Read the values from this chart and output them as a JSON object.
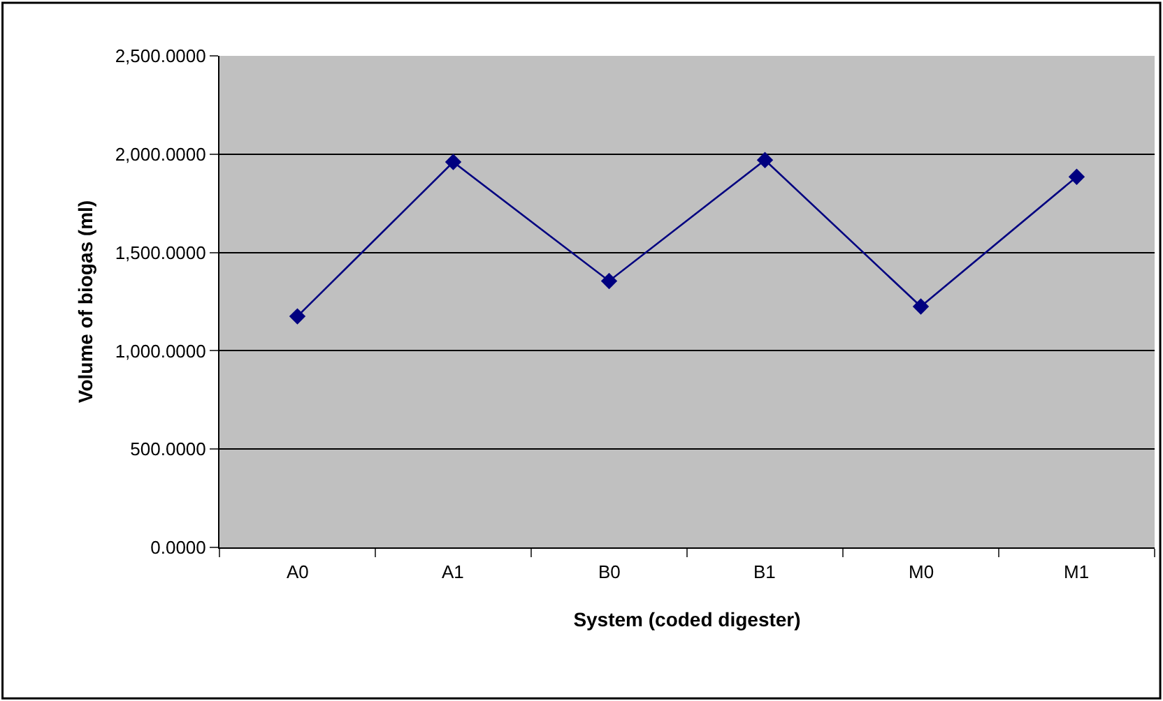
{
  "chart_data": {
    "type": "line",
    "xlabel": "System (coded digester)",
    "ylabel": "Volume of biogas (ml)",
    "categories": [
      "A0",
      "A1",
      "B0",
      "B1",
      "M0",
      "M1"
    ],
    "series": [
      {
        "color": "#000080",
        "values": [
          1175,
          1960,
          1355,
          1970,
          1225,
          1885
        ]
      }
    ],
    "ylim": [
      0,
      2500
    ],
    "yticks": [
      {
        "value": 0,
        "label": "0.0000"
      },
      {
        "value": 500,
        "label": "500.0000"
      },
      {
        "value": 1000,
        "label": "1,000.0000"
      },
      {
        "value": 1500,
        "label": "1,500.0000"
      },
      {
        "value": 2000,
        "label": "2,000.0000"
      },
      {
        "value": 2500,
        "label": "2,500.0000"
      }
    ],
    "grid": "y",
    "marker": "diamond",
    "line_style": "solid"
  }
}
